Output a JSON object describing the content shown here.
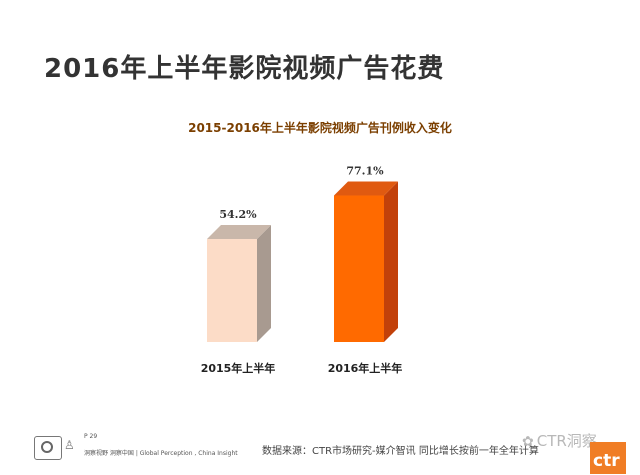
{
  "page_title": "2016年上半年影院视频广告花费",
  "colors": {
    "bar_2015_front": "#fcdcc7",
    "bar_2015_side": "#a89a90",
    "bar_2015_top": "#c9b7aa",
    "bar_2016_front": "#ff6a00",
    "bar_2016_side": "#c2410a",
    "bar_2016_top": "#e05a10",
    "chart_title": "#7b3f00",
    "logo": "#f07d25"
  },
  "chart_data": {
    "type": "bar",
    "title": "2015-2016年上半年影院视频广告刊例收入变化",
    "categories": [
      "2015年上半年",
      "2016年上半年"
    ],
    "values": [
      54.2,
      77.1
    ],
    "value_labels": [
      "54.2%",
      "77.1%"
    ],
    "unit": "%",
    "ylim": [
      0,
      100
    ],
    "grid": false,
    "legend": "none",
    "style": "3d-column"
  },
  "footer": {
    "page_label": "P 29",
    "tagline": "洞察视野  洞察中国  |  Global Perception , China Insight",
    "source": "数据来源：CTR市场研究-媒介智讯  同比增长按前一年全年计算",
    "watermark": "CTR洞察",
    "logo_text": "ctr"
  }
}
